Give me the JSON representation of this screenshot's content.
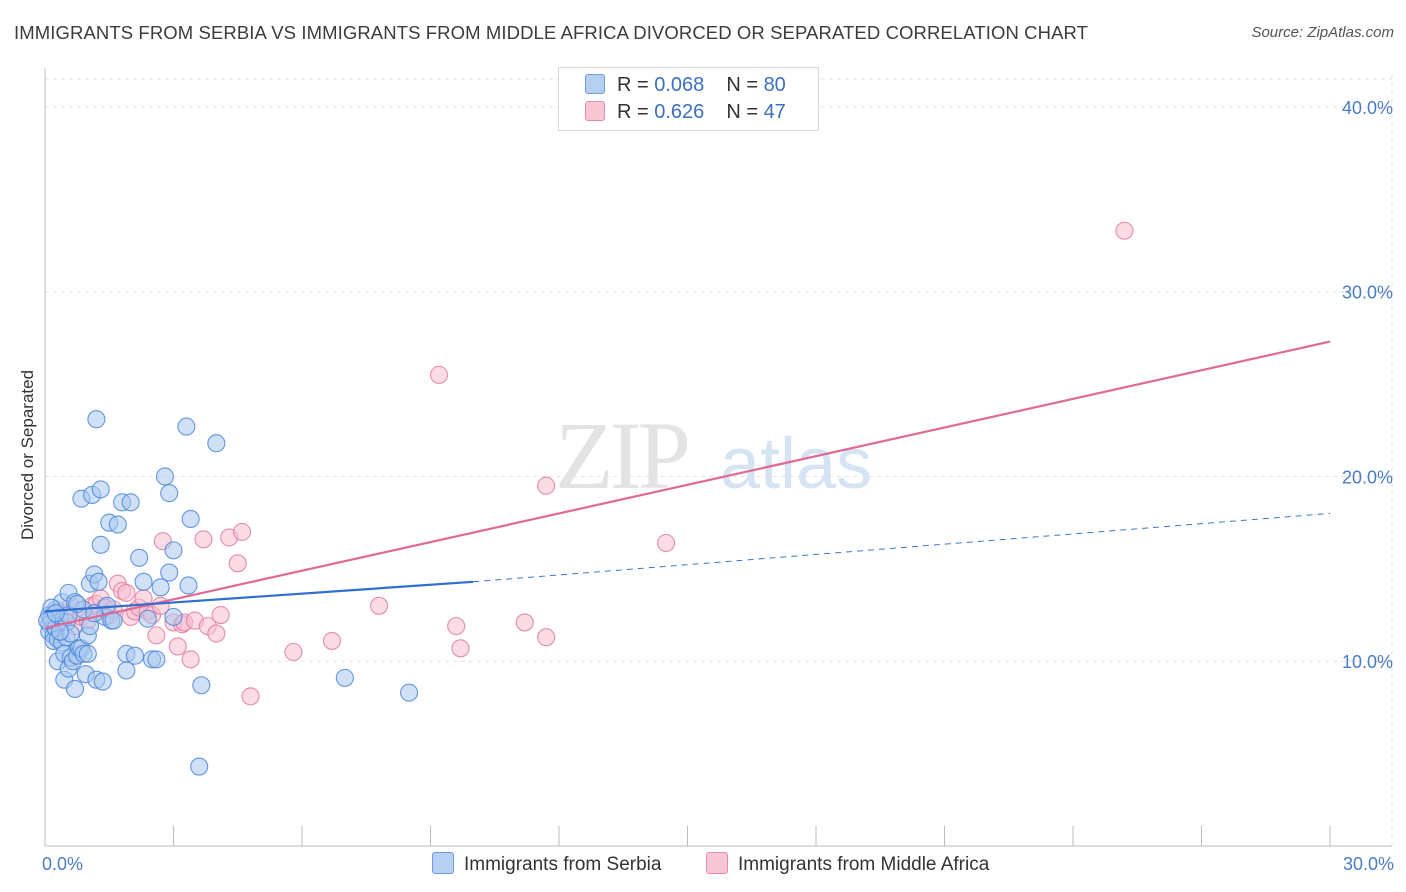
{
  "header": {
    "title": "IMMIGRANTS FROM SERBIA VS IMMIGRANTS FROM MIDDLE AFRICA DIVORCED OR SEPARATED CORRELATION CHART",
    "source": "Source: ZipAtlas.com"
  },
  "watermark": {
    "zip": "ZIP",
    "atlas": "atlas"
  },
  "legend": {
    "rows": [
      {
        "r_label": "R = ",
        "r_value": "0.068",
        "n_label": "N = ",
        "n_value": "80"
      },
      {
        "r_label": "R = ",
        "r_value": "0.626",
        "n_label": "N = ",
        "n_value": "47"
      }
    ]
  },
  "chart_data": {
    "type": "scatter",
    "title": "IMMIGRANTS FROM SERBIA VS IMMIGRANTS FROM MIDDLE AFRICA DIVORCED OR SEPARATED CORRELATION CHART",
    "xlabel": "",
    "ylabel": "Divorced or Separated",
    "xlim": [
      0,
      30
    ],
    "ylim": [
      0,
      42
    ],
    "x_tick_labels": [
      {
        "value": 0,
        "label": "0.0%"
      },
      {
        "value": 30,
        "label": "30.0%"
      }
    ],
    "y_ticks": [
      {
        "value": 10,
        "label": "10.0%"
      },
      {
        "value": 20,
        "label": "20.0%"
      },
      {
        "value": 30,
        "label": "30.0%"
      },
      {
        "value": 40,
        "label": "40.0%"
      }
    ],
    "colors": {
      "serbia_fill": "#a9c8f0",
      "serbia_stroke": "#4a86d8",
      "serbia_line": "#2e6fd0",
      "africa_fill": "#f7bfd0",
      "africa_stroke": "#e07aa0",
      "africa_line": "#e06a95"
    },
    "series": [
      {
        "name": "Immigrants from Serbia",
        "r": 0.068,
        "n": 80,
        "trend_solid": [
          [
            0,
            12.7
          ],
          [
            10,
            14.3
          ]
        ],
        "trend_dashed": [
          [
            10,
            14.3
          ],
          [
            30,
            18.0
          ]
        ],
        "points": [
          [
            0.1,
            12.5
          ],
          [
            0.1,
            12.0
          ],
          [
            0.1,
            11.6
          ],
          [
            0.15,
            12.3
          ],
          [
            0.2,
            11.4
          ],
          [
            0.2,
            11.1
          ],
          [
            0.25,
            12.8
          ],
          [
            0.25,
            11.8
          ],
          [
            0.3,
            10.0
          ],
          [
            0.3,
            11.2
          ],
          [
            0.35,
            12.4
          ],
          [
            0.4,
            13.2
          ],
          [
            0.4,
            11.0
          ],
          [
            0.45,
            9.0
          ],
          [
            0.45,
            10.4
          ],
          [
            0.5,
            11.3
          ],
          [
            0.5,
            12.1
          ],
          [
            0.55,
            9.6
          ],
          [
            0.55,
            13.7
          ],
          [
            0.6,
            10.2
          ],
          [
            0.6,
            11.5
          ],
          [
            0.65,
            10.0
          ],
          [
            0.7,
            8.5
          ],
          [
            0.7,
            13.2
          ],
          [
            0.75,
            10.3
          ],
          [
            0.8,
            10.7
          ],
          [
            0.85,
            10.7
          ],
          [
            0.85,
            18.8
          ],
          [
            0.9,
            10.4
          ],
          [
            0.9,
            12.8
          ],
          [
            0.95,
            9.3
          ],
          [
            1.0,
            10.4
          ],
          [
            1.0,
            11.4
          ],
          [
            1.05,
            14.2
          ],
          [
            1.1,
            19.0
          ],
          [
            1.15,
            14.7
          ],
          [
            1.2,
            9.0
          ],
          [
            1.2,
            23.1
          ],
          [
            1.25,
            14.3
          ],
          [
            1.3,
            16.3
          ],
          [
            1.3,
            19.3
          ],
          [
            1.35,
            8.9
          ],
          [
            1.4,
            12.4
          ],
          [
            1.45,
            13.0
          ],
          [
            1.5,
            17.5
          ],
          [
            1.55,
            12.2
          ],
          [
            1.6,
            12.2
          ],
          [
            1.7,
            17.4
          ],
          [
            1.8,
            18.6
          ],
          [
            1.9,
            10.4
          ],
          [
            1.9,
            9.5
          ],
          [
            2.0,
            18.6
          ],
          [
            2.1,
            10.3
          ],
          [
            2.2,
            15.6
          ],
          [
            2.3,
            14.3
          ],
          [
            2.4,
            12.3
          ],
          [
            2.5,
            10.1
          ],
          [
            2.6,
            10.1
          ],
          [
            2.7,
            14.0
          ],
          [
            2.8,
            20.0
          ],
          [
            2.9,
            19.1
          ],
          [
            2.9,
            14.8
          ],
          [
            3.0,
            16.0
          ],
          [
            3.0,
            12.4
          ],
          [
            3.3,
            22.7
          ],
          [
            3.35,
            14.1
          ],
          [
            3.4,
            17.7
          ],
          [
            3.6,
            4.3
          ],
          [
            3.65,
            8.7
          ],
          [
            4.0,
            21.8
          ],
          [
            7.0,
            9.1
          ],
          [
            8.5,
            8.3
          ],
          [
            0.15,
            12.9
          ],
          [
            0.35,
            11.6
          ],
          [
            0.55,
            12.5
          ],
          [
            0.75,
            13.1
          ],
          [
            1.05,
            11.9
          ],
          [
            1.15,
            12.6
          ],
          [
            0.05,
            12.2
          ],
          [
            0.25,
            12.6
          ]
        ]
      },
      {
        "name": "Immigrants from Middle Africa",
        "r": 0.626,
        "n": 47,
        "trend_solid": [
          [
            0,
            11.8
          ],
          [
            30,
            27.3
          ]
        ],
        "points": [
          [
            0.2,
            12.5
          ],
          [
            0.35,
            12.2
          ],
          [
            0.5,
            12.6
          ],
          [
            0.6,
            13.0
          ],
          [
            0.7,
            11.9
          ],
          [
            0.85,
            12.4
          ],
          [
            1.0,
            12.2
          ],
          [
            1.1,
            13.0
          ],
          [
            1.2,
            13.1
          ],
          [
            1.3,
            13.4
          ],
          [
            1.4,
            12.9
          ],
          [
            1.5,
            12.5
          ],
          [
            1.6,
            12.8
          ],
          [
            1.7,
            14.2
          ],
          [
            1.8,
            13.8
          ],
          [
            1.9,
            13.7
          ],
          [
            2.0,
            12.4
          ],
          [
            2.1,
            12.7
          ],
          [
            2.2,
            12.9
          ],
          [
            2.3,
            13.4
          ],
          [
            2.4,
            12.7
          ],
          [
            2.5,
            12.5
          ],
          [
            2.6,
            11.4
          ],
          [
            2.7,
            13.0
          ],
          [
            2.75,
            16.5
          ],
          [
            3.0,
            12.1
          ],
          [
            3.1,
            10.8
          ],
          [
            3.2,
            12.0
          ],
          [
            3.25,
            12.1
          ],
          [
            3.4,
            10.1
          ],
          [
            3.5,
            12.2
          ],
          [
            3.7,
            16.6
          ],
          [
            3.8,
            11.9
          ],
          [
            4.0,
            11.5
          ],
          [
            4.1,
            12.5
          ],
          [
            4.3,
            16.7
          ],
          [
            4.5,
            15.3
          ],
          [
            4.6,
            17.0
          ],
          [
            4.8,
            8.1
          ],
          [
            5.8,
            10.5
          ],
          [
            6.7,
            11.1
          ],
          [
            7.8,
            13.0
          ],
          [
            9.2,
            25.5
          ],
          [
            9.6,
            11.9
          ],
          [
            9.7,
            10.7
          ],
          [
            11.2,
            12.1
          ],
          [
            11.7,
            11.3
          ]
        ],
        "extra_points": [
          [
            11.7,
            19.5
          ],
          [
            14.5,
            16.4
          ],
          [
            25.2,
            33.3
          ]
        ]
      }
    ]
  },
  "bottom_legend": {
    "items": [
      {
        "label": "Immigrants from Serbia"
      },
      {
        "label": "Immigrants from Middle Africa"
      }
    ]
  }
}
